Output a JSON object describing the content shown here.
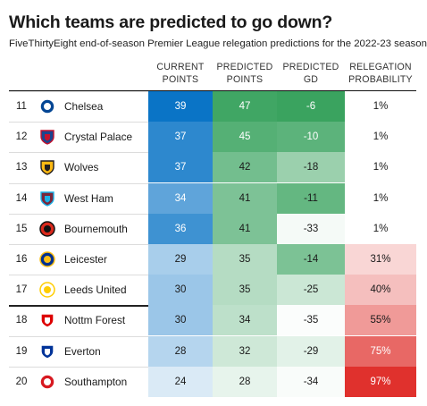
{
  "title": "Which teams are predicted to go down?",
  "subtitle": "FiveThirtyEight end-of-season Premier League relegation predictions for the 2022-23 season",
  "headers": {
    "current": [
      "CURRENT",
      "POINTS"
    ],
    "predicted": [
      "PREDICTED",
      "POINTS"
    ],
    "gd": [
      "PREDICTED",
      "GD"
    ],
    "relegation": [
      "RELEGATION",
      "PROBABILITY"
    ]
  },
  "colors": {
    "current_scale": [
      "#ffffff",
      "#0a74c6"
    ],
    "predicted_scale": [
      "#ffffff",
      "#3aa35f"
    ],
    "gd_scale": [
      "#ffffff",
      "#3aa35f"
    ],
    "relegation_scale": [
      "#ffffff",
      "#e0312d"
    ]
  },
  "chart_data": {
    "type": "table",
    "columns": [
      "",
      "",
      "CURRENT POINTS",
      "PREDICTED POINTS",
      "PREDICTED GD",
      "RELEGATION PROBABILITY"
    ],
    "rows": [
      {
        "rank": "11",
        "team": "Chelsea",
        "crest": "chelsea-crest-icon",
        "current": "39",
        "predicted": "47",
        "gd": "-6",
        "relegation": "1%",
        "current_v": 39,
        "predicted_v": 47,
        "gd_v": -6,
        "relegation_v": 1
      },
      {
        "rank": "12",
        "team": "Crystal Palace",
        "crest": "crystal-palace-crest-icon",
        "current": "37",
        "predicted": "45",
        "gd": "-10",
        "relegation": "1%",
        "current_v": 37,
        "predicted_v": 45,
        "gd_v": -10,
        "relegation_v": 1
      },
      {
        "rank": "13",
        "team": "Wolves",
        "crest": "wolves-crest-icon",
        "current": "37",
        "predicted": "42",
        "gd": "-18",
        "relegation": "1%",
        "current_v": 37,
        "predicted_v": 42,
        "gd_v": -18,
        "relegation_v": 1
      },
      {
        "rank": "14",
        "team": "West Ham",
        "crest": "west-ham-crest-icon",
        "current": "34",
        "predicted": "41",
        "gd": "-11",
        "relegation": "1%",
        "current_v": 34,
        "predicted_v": 41,
        "gd_v": -11,
        "relegation_v": 1
      },
      {
        "rank": "15",
        "team": "Bournemouth",
        "crest": "bournemouth-crest-icon",
        "current": "36",
        "predicted": "41",
        "gd": "-33",
        "relegation": "1%",
        "current_v": 36,
        "predicted_v": 41,
        "gd_v": -33,
        "relegation_v": 1
      },
      {
        "rank": "16",
        "team": "Leicester",
        "crest": "leicester-crest-icon",
        "current": "29",
        "predicted": "35",
        "gd": "-14",
        "relegation": "31%",
        "current_v": 29,
        "predicted_v": 35,
        "gd_v": -14,
        "relegation_v": 31
      },
      {
        "rank": "17",
        "team": "Leeds United",
        "crest": "leeds-crest-icon",
        "current": "30",
        "predicted": "35",
        "gd": "-25",
        "relegation": "40%",
        "current_v": 30,
        "predicted_v": 35,
        "gd_v": -25,
        "relegation_v": 40
      },
      {
        "rank": "18",
        "team": "Nottm Forest",
        "crest": "nottm-forest-crest-icon",
        "current": "30",
        "predicted": "34",
        "gd": "-35",
        "relegation": "55%",
        "current_v": 30,
        "predicted_v": 34,
        "gd_v": -35,
        "relegation_v": 55
      },
      {
        "rank": "19",
        "team": "Everton",
        "crest": "everton-crest-icon",
        "current": "28",
        "predicted": "32",
        "gd": "-29",
        "relegation": "75%",
        "current_v": 28,
        "predicted_v": 32,
        "gd_v": -29,
        "relegation_v": 75
      },
      {
        "rank": "20",
        "team": "Southampton",
        "crest": "southampton-crest-icon",
        "current": "24",
        "predicted": "28",
        "gd": "-34",
        "relegation": "97%",
        "current_v": 24,
        "predicted_v": 28,
        "gd_v": -34,
        "relegation_v": 97
      }
    ],
    "relegation_zone_starts_at_rank": "18"
  }
}
